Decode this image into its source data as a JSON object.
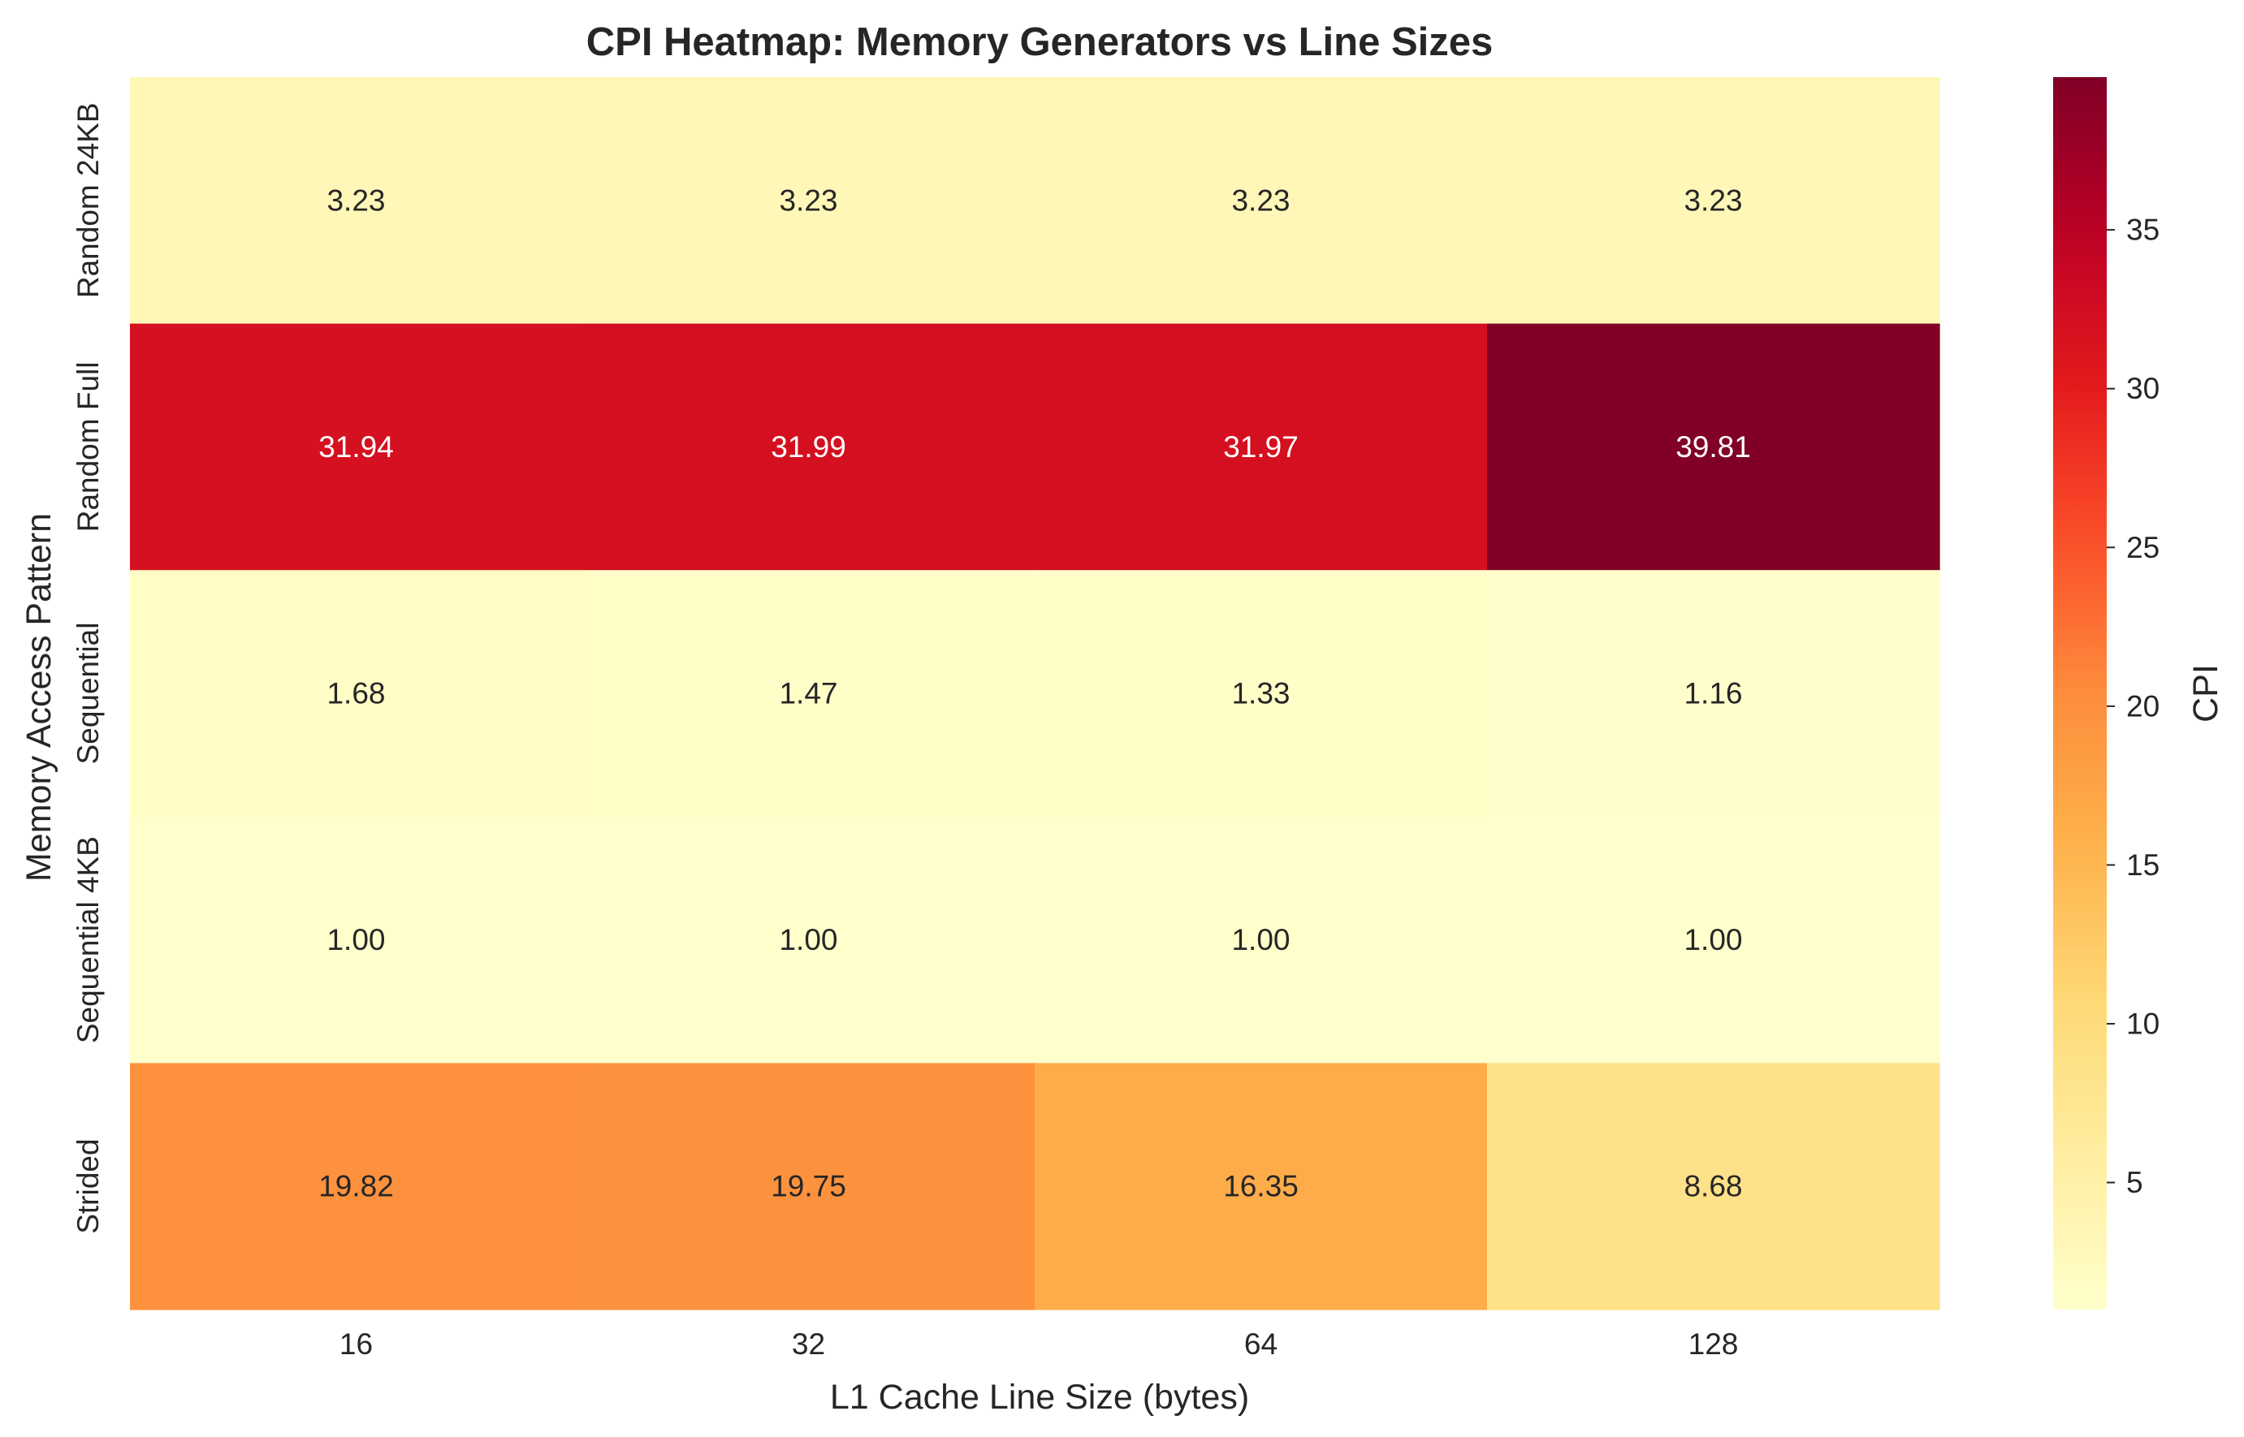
{
  "chart_data": {
    "type": "heatmap",
    "title": "CPI Heatmap: Memory Generators vs Line Sizes",
    "xlabel": "L1 Cache Line Size (bytes)",
    "ylabel": "Memory Access Pattern",
    "x_categories": [
      "16",
      "32",
      "64",
      "128"
    ],
    "y_categories": [
      "Random 24KB",
      "Random Full",
      "Sequential",
      "Sequential 4KB",
      "Strided"
    ],
    "values": [
      [
        3.23,
        3.23,
        3.23,
        3.23
      ],
      [
        31.94,
        31.99,
        31.97,
        39.81
      ],
      [
        1.68,
        1.47,
        1.33,
        1.16
      ],
      [
        1.0,
        1.0,
        1.0,
        1.0
      ],
      [
        19.82,
        19.75,
        16.35,
        8.68
      ]
    ],
    "cell_labels": [
      [
        "3.23",
        "3.23",
        "3.23",
        "3.23"
      ],
      [
        "31.94",
        "31.99",
        "31.97",
        "39.81"
      ],
      [
        "1.68",
        "1.47",
        "1.33",
        "1.16"
      ],
      [
        "1.00",
        "1.00",
        "1.00",
        "1.00"
      ],
      [
        "19.82",
        "19.75",
        "16.35",
        "8.68"
      ]
    ],
    "colormap": "YlOrRd",
    "colorbar": {
      "label": "CPI",
      "range": [
        1.0,
        39.81
      ],
      "ticks": [
        5,
        10,
        15,
        20,
        25,
        30,
        35
      ],
      "tick_labels": [
        "5",
        "10",
        "15",
        "20",
        "25",
        "30",
        "35"
      ]
    },
    "grid": false
  }
}
